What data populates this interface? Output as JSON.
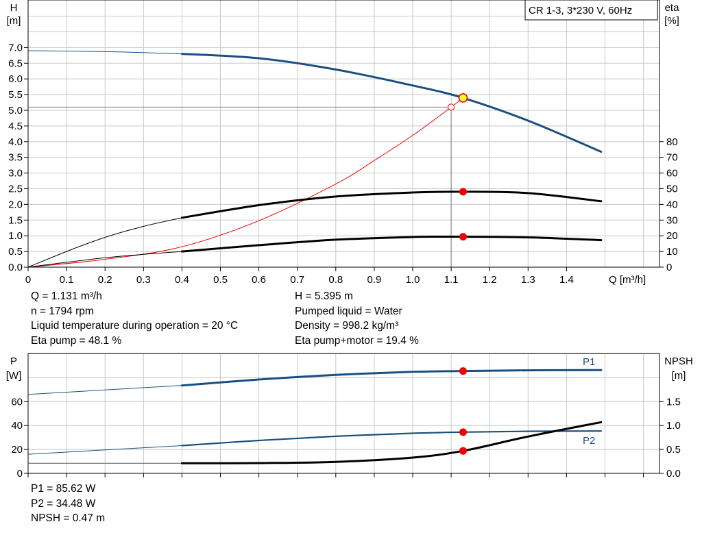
{
  "charts": {
    "top": {
      "legend_box": "CR 1-3, 3*230 V, 60Hz",
      "left_axis": {
        "name": "H",
        "unit": "[m]"
      },
      "right_axis": {
        "name": "eta",
        "unit": "[%]"
      },
      "x_axis_label": "Q [m³/h]"
    },
    "bottom": {
      "left_axis": {
        "name": "P",
        "unit": "[W]"
      },
      "right_axis": {
        "name": "NPSH",
        "unit": "[m]"
      }
    }
  },
  "chart_data": [
    {
      "type": "line",
      "title": "CR 1-3, 3*230 V, 60Hz",
      "xlabel": "Q [m³/h]",
      "ylabel": "H [m]",
      "y2label": "eta [%]",
      "xlim": [
        0,
        1.5
      ],
      "ylim": [
        0,
        7.5
      ],
      "y2lim": [
        0,
        150
      ],
      "x_ticks": [
        "0",
        "0.1",
        "0.2",
        "0.3",
        "0.4",
        "0.5",
        "0.6",
        "0.7",
        "0.8",
        "0.9",
        "1.0",
        "1.1",
        "1.2",
        "1.3",
        "1.4"
      ],
      "y_ticks": [
        "0.0",
        "0.5",
        "1.0",
        "1.5",
        "2.0",
        "2.5",
        "3.0",
        "3.5",
        "4.0",
        "4.5",
        "5.0",
        "5.5",
        "6.0",
        "6.5",
        "7.0"
      ],
      "y2_ticks": [
        "0",
        "10",
        "20",
        "30",
        "40",
        "50",
        "60",
        "70",
        "80"
      ],
      "grid": true,
      "series": [
        {
          "axis": "left",
          "color": "#1a4f80",
          "weight": "thick",
          "x": [
            0.4,
            0.6,
            0.8,
            1.0,
            1.131,
            1.3,
            1.49
          ],
          "y": [
            6.8,
            6.66,
            6.3,
            5.79,
            5.395,
            4.67,
            3.68
          ],
          "thin_extension": {
            "x": [
              0,
              0.2,
              0.4
            ],
            "y": [
              6.9,
              6.87,
              6.8
            ]
          }
        },
        {
          "axis": "left",
          "color": "#f00000",
          "weight": "thin",
          "x": [
            0,
            0.2,
            0.4,
            0.6,
            0.8,
            0.9,
            1.0,
            1.1,
            1.131
          ],
          "y": [
            0,
            0.25,
            0.65,
            1.48,
            2.65,
            3.4,
            4.2,
            5.1,
            5.395
          ]
        },
        {
          "axis": "right",
          "color": "#000000",
          "weight": "thick",
          "x": [
            0.4,
            0.6,
            0.8,
            1.0,
            1.131,
            1.3,
            1.49
          ],
          "y": [
            31.5,
            39.5,
            45.0,
            47.6,
            48.1,
            47.2,
            42.0
          ],
          "thin_extension": {
            "x": [
              0,
              0.1,
              0.2,
              0.3,
              0.4
            ],
            "y": [
              0,
              10,
              19,
              26,
              31.5
            ]
          }
        },
        {
          "axis": "right",
          "color": "#000000",
          "weight": "thick",
          "x": [
            0.4,
            0.6,
            0.8,
            1.0,
            1.131,
            1.3,
            1.49
          ],
          "y": [
            10,
            14,
            17.5,
            19.2,
            19.4,
            19.0,
            17.2
          ],
          "thin_extension": {
            "x": [
              0,
              0.2,
              0.4
            ],
            "y": [
              0,
              6,
              10
            ]
          }
        }
      ],
      "operating_point": {
        "Q": 1.131,
        "H": 5.395,
        "eta_pump": 48.1,
        "eta_pump_motor": 19.4
      },
      "reference_point": {
        "Q": 1.1,
        "H": 5.1
      }
    },
    {
      "type": "line",
      "ylabel": "P [W]",
      "y2label": "NPSH [m]",
      "xlim": [
        0,
        1.5
      ],
      "ylim": [
        0,
        90
      ],
      "y2lim": [
        0,
        2.25
      ],
      "y_ticks": [
        "0",
        "20",
        "40",
        "60"
      ],
      "y2_ticks": [
        "0.0",
        "0.5",
        "1.0",
        "1.5"
      ],
      "grid": true,
      "series": [
        {
          "name": "P1",
          "axis": "left",
          "color": "#1a4f80",
          "weight": "thick",
          "x": [
            0.4,
            0.6,
            0.8,
            1.0,
            1.131,
            1.3,
            1.49
          ],
          "y": [
            73.5,
            78.5,
            82.4,
            84.9,
            85.62,
            86.2,
            86.4
          ],
          "thin_extension": {
            "x": [
              0,
              0.4
            ],
            "y": [
              66,
              73.5
            ]
          }
        },
        {
          "name": "P2",
          "axis": "left",
          "color": "#1a4f80",
          "weight": "medium",
          "x": [
            0.4,
            0.6,
            0.8,
            1.0,
            1.131,
            1.3,
            1.49
          ],
          "y": [
            23.2,
            27.5,
            31.0,
            33.5,
            34.48,
            35.2,
            35.4
          ],
          "thin_extension": {
            "x": [
              0,
              0.4
            ],
            "y": [
              16,
              23.2
            ]
          }
        },
        {
          "axis": "right",
          "color": "#000000",
          "weight": "thick",
          "x": [
            0.4,
            0.6,
            0.8,
            1.0,
            1.131,
            1.3,
            1.49
          ],
          "y": [
            0.21,
            0.215,
            0.24,
            0.33,
            0.47,
            0.77,
            1.07
          ],
          "thin_extension": {
            "x": [
              0,
              0.4
            ],
            "y": [
              0.21,
              0.21
            ]
          }
        }
      ],
      "operating_point": {
        "Q": 1.131,
        "P1": 85.62,
        "P2": 34.48,
        "NPSH": 0.47
      }
    }
  ],
  "info": {
    "left": [
      "Q = 1.131 m³/h",
      "n = 1794 rpm",
      "Liquid temperature during operation = 20 °C",
      "Eta pump = 48.1 %"
    ],
    "right": [
      "H = 5.395 m",
      "Pumped liquid = Water",
      "Density = 998.2 kg/m³",
      "Eta pump+motor = 19.4 %"
    ],
    "bottom": [
      "P1 = 85.62 W",
      "P2 = 34.48 W",
      "NPSH = 0.47 m"
    ]
  }
}
